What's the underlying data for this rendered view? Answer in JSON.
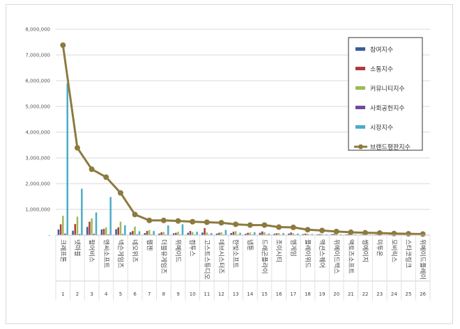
{
  "chart_data": {
    "type": "bar",
    "categories": [
      "크래프톤",
      "넷마블",
      "펄어비스",
      "엔씨소프트",
      "넥슨게임즈",
      "네오위즈",
      "웹젠",
      "더블유게임즈",
      "위메이드",
      "컴투스",
      "고스트스튜디오",
      "데브시스터즈",
      "한빛소프트",
      "넵튠",
      "드래곤플라이",
      "조이시티",
      "엠게임",
      "플레이위드",
      "액션스퀘어",
      "위메이드맥스",
      "액토즈소프트",
      "썸에이지",
      "미투온",
      "모비릭스",
      "스타코링크",
      "위메이드플레이"
    ],
    "ranks": [
      "1",
      "2",
      "3",
      "4",
      "5",
      "6",
      "7",
      "8",
      "9",
      "10",
      "11",
      "12",
      "13",
      "14",
      "15",
      "16",
      "17",
      "18",
      "19",
      "20",
      "21",
      "22",
      "23",
      "24",
      "25",
      "26"
    ],
    "ylim": [
      0,
      8000000
    ],
    "yticks": [
      {
        "value": 0,
        "label": "-"
      },
      {
        "value": 1000000,
        "label": "1,000,000"
      },
      {
        "value": 2000000,
        "label": "2,000,000"
      },
      {
        "value": 3000000,
        "label": "3,000,000"
      },
      {
        "value": 4000000,
        "label": "4,000,000"
      },
      {
        "value": 5000000,
        "label": "5,000,000"
      },
      {
        "value": 6000000,
        "label": "6,000,000"
      },
      {
        "value": 7000000,
        "label": "7,000,000"
      },
      {
        "value": 8000000,
        "label": "8,000,000"
      }
    ],
    "grid": true,
    "legend_position": "top-right",
    "series": [
      {
        "name": "참여지수",
        "color": "#3a5d9c",
        "values": [
          220000,
          170000,
          320000,
          220000,
          230000,
          110000,
          80000,
          60000,
          70000,
          90000,
          100000,
          60000,
          80000,
          50000,
          90000,
          50000,
          60000,
          40000,
          30000,
          40000,
          30000,
          20000,
          20000,
          20000,
          15000,
          15000
        ]
      },
      {
        "name": "소통지수",
        "color": "#b23a3a",
        "values": [
          420000,
          430000,
          520000,
          240000,
          300000,
          160000,
          160000,
          110000,
          90000,
          160000,
          270000,
          90000,
          130000,
          90000,
          140000,
          70000,
          100000,
          60000,
          40000,
          50000,
          40000,
          30000,
          30000,
          20000,
          20000,
          15000
        ]
      },
      {
        "name": "커뮤니티지수",
        "color": "#9bbb59",
        "values": [
          750000,
          720000,
          650000,
          300000,
          520000,
          330000,
          200000,
          120000,
          130000,
          120000,
          100000,
          110000,
          150000,
          100000,
          110000,
          80000,
          70000,
          50000,
          40000,
          40000,
          30000,
          30000,
          30000,
          25000,
          20000,
          20000
        ]
      },
      {
        "name": "사회공헌지수",
        "color": "#6f4a9a",
        "values": [
          60000,
          40000,
          50000,
          30000,
          40000,
          30000,
          20000,
          20000,
          20000,
          20000,
          20000,
          20000,
          20000,
          20000,
          20000,
          15000,
          15000,
          10000,
          10000,
          10000,
          10000,
          10000,
          10000,
          5000,
          5000,
          5000
        ]
      },
      {
        "name": "시장지수",
        "color": "#4bacc6",
        "values": [
          5900000,
          1800000,
          880000,
          1480000,
          380000,
          150000,
          160000,
          380000,
          420000,
          130000,
          80000,
          200000,
          90000,
          110000,
          60000,
          80000,
          60000,
          40000,
          30000,
          30000,
          30000,
          20000,
          15000,
          10000,
          10000,
          10000
        ]
      },
      {
        "name": "브랜드평판지수",
        "color": "#8c7a3e",
        "values": [
          7380000,
          3390000,
          2560000,
          2250000,
          1640000,
          800000,
          570000,
          570000,
          550000,
          520000,
          500000,
          480000,
          420000,
          390000,
          390000,
          310000,
          300000,
          210000,
          180000,
          140000,
          110000,
          90000,
          80000,
          60000,
          50000,
          40000
        ]
      }
    ]
  }
}
